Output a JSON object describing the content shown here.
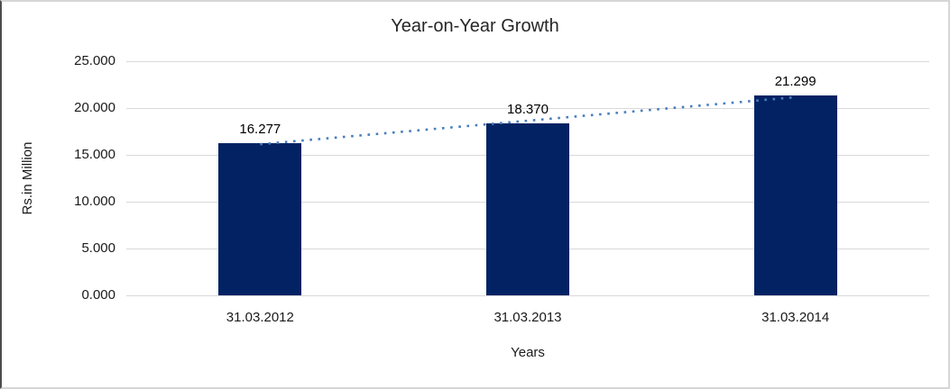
{
  "chart_data": {
    "type": "bar",
    "title": "Year-on-Year Growth",
    "categories": [
      "31.03.2012",
      "31.03.2013",
      "31.03.2014"
    ],
    "values": [
      16.277,
      18.37,
      21.299
    ],
    "value_labels": [
      "16.277",
      "18.370",
      "21.299"
    ],
    "xlabel": "Years",
    "ylabel": "Rs.in Million",
    "ylim": [
      0,
      25
    ],
    "ytick_values": [
      0,
      5,
      10,
      15,
      20,
      25
    ],
    "ytick_labels": [
      "0.000",
      "5.000",
      "10.000",
      "15.000",
      "20.000",
      "25.000"
    ],
    "grid": true,
    "legend": false,
    "trendline": {
      "type": "linear",
      "style": "dotted"
    },
    "colors": {
      "bar": "#022263",
      "trendline": "#4a7ebb",
      "gridline": "#d9d9d9",
      "text": "#1a1a1a"
    }
  }
}
